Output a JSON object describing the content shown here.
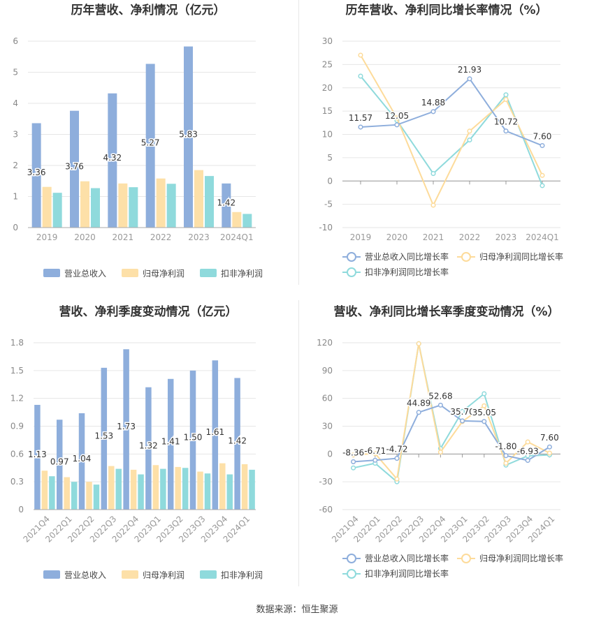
{
  "colors": {
    "revenue": "#8eaedc",
    "net_profit": "#fde0a8",
    "deducted_profit": "#8fdadc",
    "revenue_line": "#8eaedc",
    "net_line": "#fddb9a",
    "deducted_line": "#8fdadc"
  },
  "legend_labels": {
    "revenue_bar": "营业总收入",
    "net_bar": "归母净利润",
    "deducted_bar": "扣非净利润",
    "revenue_growth": "营业总收入同比增长率",
    "net_growth": "归母净利润同比增长率",
    "deducted_growth": "扣非净利润同比增长率"
  },
  "source": {
    "label": "数据来源：",
    "name": "恒生聚源"
  },
  "chart_data": [
    {
      "id": "annual_values",
      "type": "bar",
      "title": "历年营收、净利情况（亿元）",
      "categories": [
        "2019",
        "2020",
        "2021",
        "2022",
        "2023",
        "2024Q1"
      ],
      "series": [
        {
          "name": "营业总收入",
          "values": [
            3.36,
            3.76,
            4.32,
            5.27,
            5.83,
            1.42
          ],
          "labeled": true
        },
        {
          "name": "归母净利润",
          "values": [
            1.31,
            1.49,
            1.42,
            1.58,
            1.85,
            0.5
          ]
        },
        {
          "name": "扣非净利润",
          "values": [
            1.12,
            1.27,
            1.3,
            1.41,
            1.66,
            0.44
          ]
        }
      ],
      "yticks": [
        "0",
        "1",
        "2",
        "3",
        "4",
        "5",
        "6"
      ],
      "ylim": [
        0,
        6
      ],
      "grid": true,
      "legend": "bottom"
    },
    {
      "id": "annual_growth",
      "type": "line",
      "title": "历年营收、净利同比增长率情况（%）",
      "categories": [
        "2019",
        "2020",
        "2021",
        "2022",
        "2023",
        "2024Q1"
      ],
      "series": [
        {
          "name": "营业总收入同比增长率",
          "values": [
            11.57,
            12.05,
            14.88,
            21.93,
            10.72,
            7.6
          ],
          "labels": [
            "11.57",
            "12.05",
            "14.88",
            "21.93",
            "10.72",
            "7.60"
          ]
        },
        {
          "name": "归母净利润同比增长率",
          "values": [
            27.0,
            13.5,
            -5.2,
            10.7,
            17.5,
            1.2
          ]
        },
        {
          "name": "扣非净利润同比增长率",
          "values": [
            22.5,
            13.0,
            1.6,
            8.8,
            18.5,
            -1.0
          ]
        }
      ],
      "yticks": [
        "-10",
        "-5",
        "0",
        "5",
        "10",
        "15",
        "20",
        "25",
        "30"
      ],
      "ylim": [
        -10,
        30
      ],
      "grid": true,
      "legend": "bottom"
    },
    {
      "id": "quarterly_values",
      "type": "bar",
      "title": "营收、净利季度变动情况（亿元）",
      "categories": [
        "2021Q4",
        "2022Q1",
        "2022Q2",
        "2022Q3",
        "2022Q4",
        "2023Q1",
        "2023Q2",
        "2023Q3",
        "2023Q4",
        "2024Q1"
      ],
      "series": [
        {
          "name": "营业总收入",
          "values": [
            1.13,
            0.97,
            1.04,
            1.53,
            1.73,
            1.32,
            1.41,
            1.5,
            1.61,
            1.42
          ],
          "labeled": true
        },
        {
          "name": "归母净利润",
          "values": [
            0.42,
            0.35,
            0.3,
            0.47,
            0.43,
            0.48,
            0.46,
            0.41,
            0.5,
            0.49
          ]
        },
        {
          "name": "扣非净利润",
          "values": [
            0.36,
            0.3,
            0.27,
            0.44,
            0.38,
            0.44,
            0.45,
            0.39,
            0.38,
            0.43
          ]
        }
      ],
      "yticks": [
        "0",
        "0.3",
        "0.6",
        "0.9",
        "1.2",
        "1.5",
        "1.8"
      ],
      "ylim": [
        0,
        1.8
      ],
      "grid": true,
      "legend": "bottom"
    },
    {
      "id": "quarterly_growth",
      "type": "line",
      "title": "营收、净利同比增长率季度变动情况（%）",
      "categories": [
        "2021Q4",
        "2022Q1",
        "2022Q2",
        "2022Q3",
        "2022Q4",
        "2023Q1",
        "2023Q2",
        "2023Q3",
        "2023Q4",
        "2024Q1"
      ],
      "series": [
        {
          "name": "营业总收入同比增长率",
          "values": [
            -8.36,
            -6.71,
            -4.72,
            44.89,
            52.68,
            35.7,
            35.05,
            -1.8,
            -6.93,
            7.6
          ],
          "labels": [
            "-8.36",
            "-6.71",
            "-4.72",
            "44.89",
            "52.68",
            "35.70",
            "35.05",
            "-1.80",
            "-6.93",
            "7.60"
          ]
        },
        {
          "name": "归母净利润同比增长率",
          "values": [
            -1.0,
            0.5,
            -27.0,
            119.0,
            2.0,
            35.0,
            52.0,
            -10.0,
            13.0,
            1.0
          ]
        },
        {
          "name": "扣非净利润同比增长率",
          "values": [
            -15.0,
            -10.0,
            -30.0,
            119.0,
            6.0,
            46.0,
            65.0,
            -12.0,
            -2.0,
            -1.0
          ]
        }
      ],
      "yticks": [
        "-60",
        "-30",
        "0",
        "30",
        "60",
        "90",
        "120"
      ],
      "ylim": [
        -60,
        120
      ],
      "grid": true,
      "legend": "bottom"
    }
  ]
}
